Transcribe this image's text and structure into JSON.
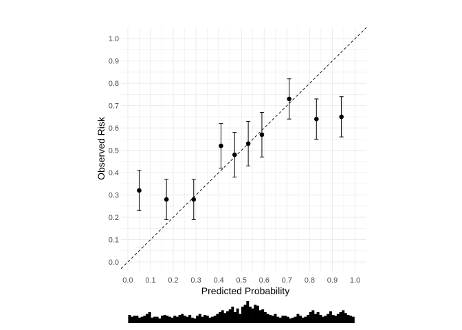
{
  "chart_data": {
    "type": "scatter",
    "subtype": "calibration-plot-with-error-bars",
    "xlabel": "Predicted Probability",
    "ylabel": "Observed Risk",
    "xlim": [
      -0.03,
      1.05
    ],
    "ylim": [
      -0.04,
      1.05
    ],
    "x_ticks": [
      "0.0",
      "0.1",
      "0.2",
      "0.3",
      "0.4",
      "0.5",
      "0.6",
      "0.7",
      "0.8",
      "0.9",
      "1.0"
    ],
    "y_ticks": [
      "0.0",
      "0.1",
      "0.2",
      "0.3",
      "0.4",
      "0.5",
      "0.6",
      "0.7",
      "0.8",
      "0.9",
      "1.0"
    ],
    "grid": true,
    "reference_line": {
      "style": "dashed",
      "from": [
        0,
        0
      ],
      "to": [
        1,
        1
      ]
    },
    "points": [
      {
        "x": 0.05,
        "y": 0.32,
        "lower": 0.23,
        "upper": 0.41
      },
      {
        "x": 0.17,
        "y": 0.28,
        "lower": 0.19,
        "upper": 0.37
      },
      {
        "x": 0.29,
        "y": 0.28,
        "lower": 0.19,
        "upper": 0.37
      },
      {
        "x": 0.41,
        "y": 0.52,
        "lower": 0.42,
        "upper": 0.62
      },
      {
        "x": 0.47,
        "y": 0.48,
        "lower": 0.38,
        "upper": 0.58
      },
      {
        "x": 0.53,
        "y": 0.53,
        "lower": 0.43,
        "upper": 0.63
      },
      {
        "x": 0.59,
        "y": 0.57,
        "lower": 0.47,
        "upper": 0.67
      },
      {
        "x": 0.71,
        "y": 0.73,
        "lower": 0.64,
        "upper": 0.82
      },
      {
        "x": 0.83,
        "y": 0.64,
        "lower": 0.55,
        "upper": 0.73
      },
      {
        "x": 0.94,
        "y": 0.65,
        "lower": 0.56,
        "upper": 0.74
      }
    ],
    "histogram": {
      "range": [
        0.05,
        1.0
      ],
      "counts": [
        9,
        7,
        8,
        8,
        6,
        7,
        8,
        10,
        12,
        6,
        7,
        7,
        5,
        8,
        9,
        8,
        7,
        6,
        8,
        7,
        9,
        10,
        8,
        7,
        9,
        6,
        5,
        8,
        10,
        7,
        9,
        8,
        6,
        7,
        8,
        10,
        12,
        14,
        11,
        13,
        15,
        18,
        12,
        16,
        10,
        18,
        20,
        24,
        18,
        16,
        20,
        19,
        14,
        15,
        12,
        10,
        9,
        8,
        10,
        7,
        6,
        8,
        8,
        7,
        5,
        6,
        7,
        10,
        8,
        6,
        7,
        9,
        12,
        14,
        10,
        12,
        9,
        7,
        8,
        10,
        13,
        9,
        8,
        10,
        12,
        14,
        11,
        9,
        8,
        7
      ]
    },
    "colors": {
      "points": "#000000",
      "grid": "#ebebeb",
      "reference_line": "#000000",
      "histogram": "#000000",
      "tick_labels": "#4d4d4d"
    }
  }
}
